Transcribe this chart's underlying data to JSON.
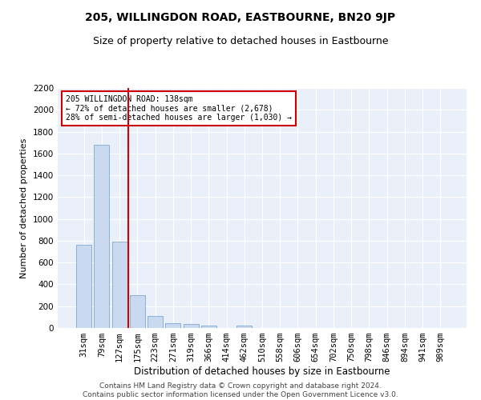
{
  "title": "205, WILLINGDON ROAD, EASTBOURNE, BN20 9JP",
  "subtitle": "Size of property relative to detached houses in Eastbourne",
  "xlabel": "Distribution of detached houses by size in Eastbourne",
  "ylabel": "Number of detached properties",
  "categories": [
    "31sqm",
    "79sqm",
    "127sqm",
    "175sqm",
    "223sqm",
    "271sqm",
    "319sqm",
    "366sqm",
    "414sqm",
    "462sqm",
    "510sqm",
    "558sqm",
    "606sqm",
    "654sqm",
    "702sqm",
    "750sqm",
    "798sqm",
    "846sqm",
    "894sqm",
    "941sqm",
    "989sqm"
  ],
  "values": [
    760,
    1680,
    790,
    300,
    110,
    45,
    35,
    25,
    0,
    25,
    0,
    0,
    0,
    0,
    0,
    0,
    0,
    0,
    0,
    0,
    0
  ],
  "bar_color": "#c9d9f0",
  "bar_edge_color": "#7fa8d1",
  "redline_index": 2,
  "annotation_line1": "205 WILLINGDON ROAD: 138sqm",
  "annotation_line2": "← 72% of detached houses are smaller (2,678)",
  "annotation_line3": "28% of semi-detached houses are larger (1,030) →",
  "annotation_box_color": "#ffffff",
  "annotation_box_edge_color": "#cc0000",
  "redline_color": "#cc0000",
  "ylim": [
    0,
    2200
  ],
  "yticks": [
    0,
    200,
    400,
    600,
    800,
    1000,
    1200,
    1400,
    1600,
    1800,
    2000,
    2200
  ],
  "footer1": "Contains HM Land Registry data © Crown copyright and database right 2024.",
  "footer2": "Contains public sector information licensed under the Open Government Licence v3.0.",
  "background_color": "#eaf0fa",
  "grid_color": "#ffffff",
  "title_fontsize": 10,
  "subtitle_fontsize": 9,
  "axis_label_fontsize": 8,
  "tick_fontsize": 7.5,
  "footer_fontsize": 6.5
}
